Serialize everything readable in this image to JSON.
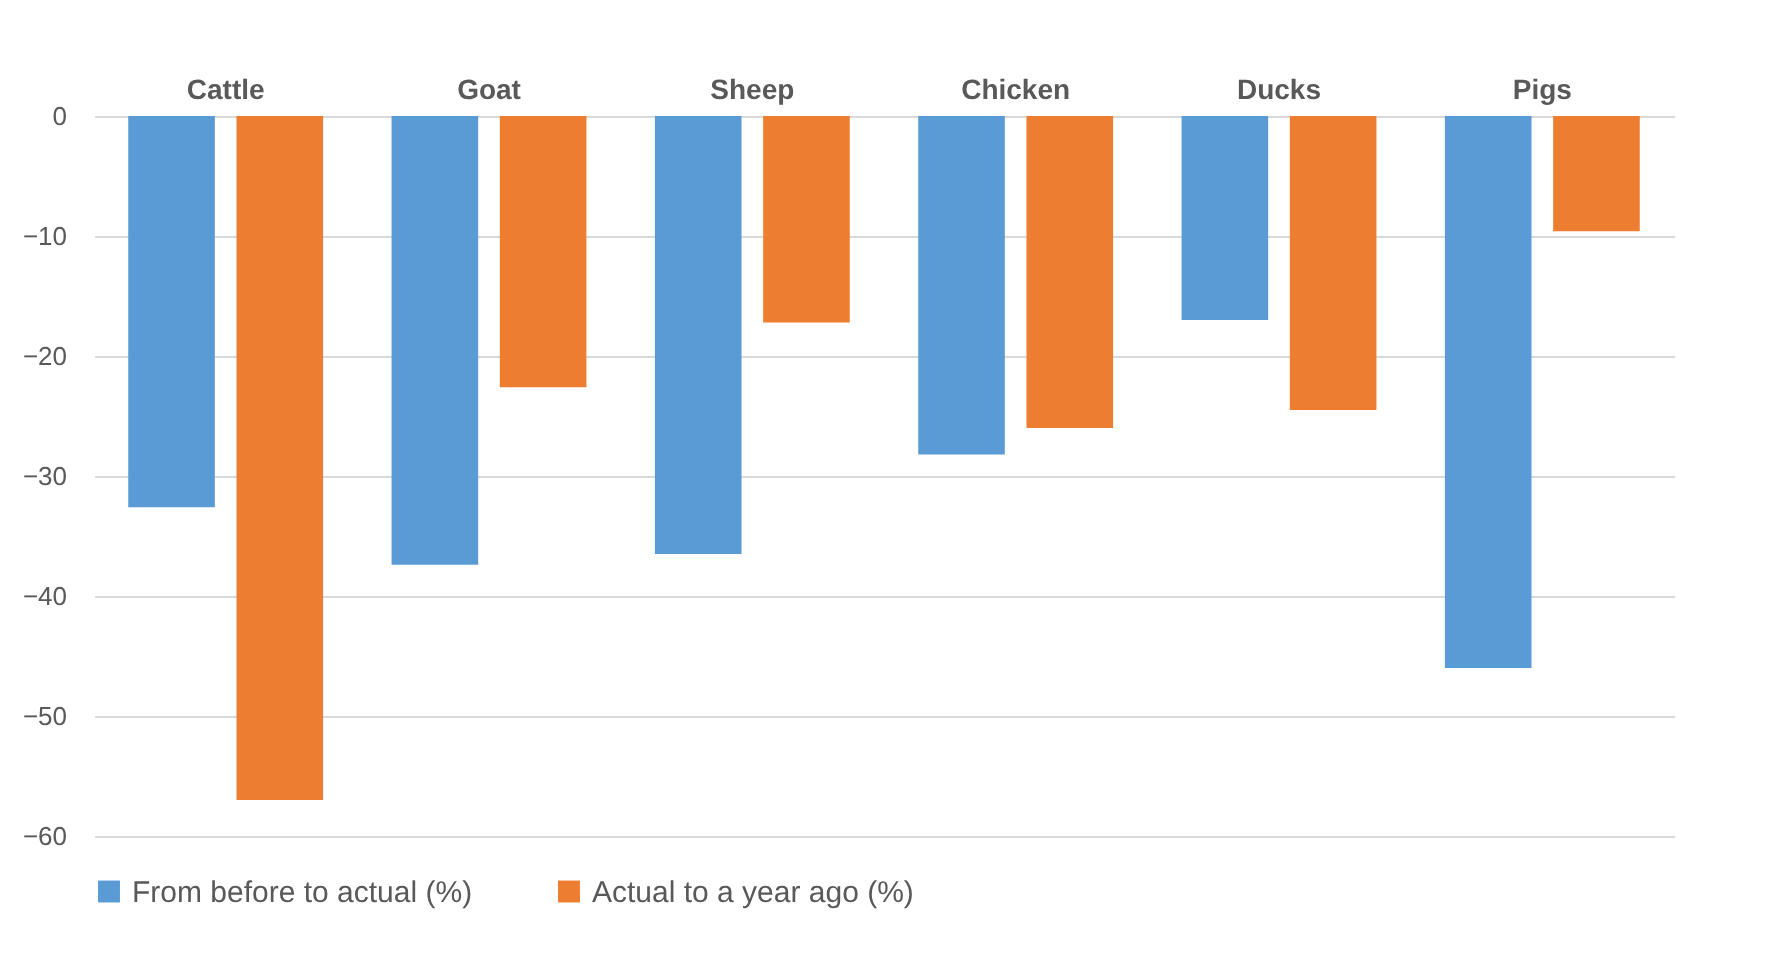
{
  "chart_data": {
    "type": "bar",
    "categories": [
      "Cattle",
      "Goat",
      "Sheep",
      "Chicken",
      "Ducks",
      "Pigs"
    ],
    "series": [
      {
        "name": "From before to actual (%)",
        "color": "#5b9bd5",
        "values": [
          -32.6,
          -37.4,
          -36.5,
          -28.2,
          -17,
          -46
        ]
      },
      {
        "name": "Actual to a year ago (%)",
        "color": "#ed7d31",
        "values": [
          -57,
          -22.6,
          -17.2,
          -26,
          -24.5,
          -9.6
        ]
      }
    ],
    "ylim": [
      -60,
      0
    ],
    "yticks": [
      -60,
      -50,
      -40,
      -30,
      -20,
      -10,
      0
    ],
    "grid": "y",
    "legend": "bottom"
  }
}
